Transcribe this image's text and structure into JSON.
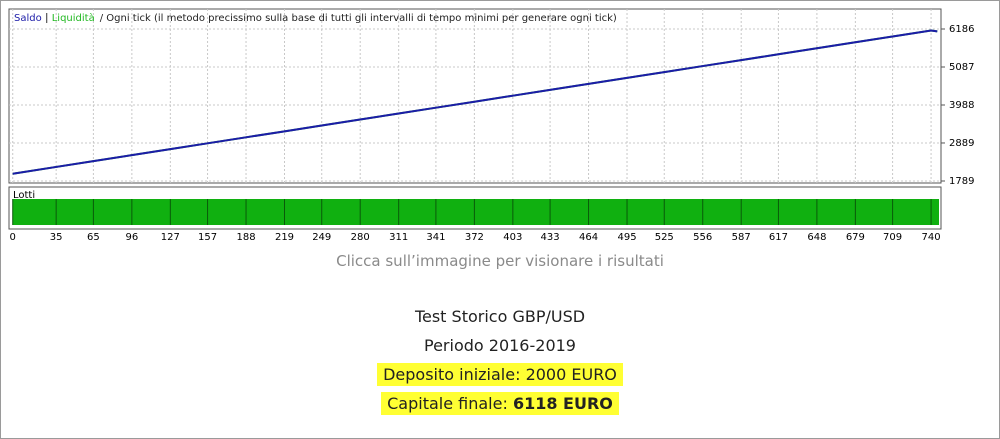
{
  "chart_data": {
    "type": "line",
    "subtitle": "/ Ogni tick (il metodo precissimo sulla base di tutti gli intervalli di tempo minimi per generare ogni tick)",
    "x": [
      0,
      35,
      65,
      96,
      127,
      157,
      188,
      219,
      249,
      280,
      311,
      341,
      372,
      403,
      433,
      464,
      495,
      525,
      556,
      587,
      617,
      648,
      679,
      709,
      740,
      745
    ],
    "series": [
      {
        "name": "Saldo",
        "color": "#1c1ca8",
        "values": [
          2000,
          2196,
          2364,
          2538,
          2711,
          2879,
          3053,
          3226,
          3394,
          3568,
          3742,
          3910,
          4083,
          4257,
          4425,
          4598,
          4772,
          4940,
          5114,
          5287,
          5455,
          5629,
          5802,
          5970,
          6144,
          6118
        ]
      },
      {
        "name": "Liquidità",
        "color": "#22b822",
        "values": [
          2000,
          2196,
          2364,
          2538,
          2711,
          2879,
          3053,
          3226,
          3394,
          3568,
          3742,
          3910,
          4083,
          4257,
          4425,
          4598,
          4772,
          4940,
          5114,
          5287,
          5455,
          5629,
          5802,
          5970,
          6144,
          6118
        ]
      }
    ],
    "xlim": [
      -3,
      748
    ],
    "xticks": [
      0,
      35,
      65,
      96,
      127,
      157,
      188,
      219,
      249,
      280,
      311,
      341,
      372,
      403,
      433,
      464,
      495,
      525,
      556,
      587,
      617,
      648,
      679,
      709,
      740
    ],
    "ylim": [
      1789,
      6707
    ],
    "yticks": [
      1789,
      2889,
      3988,
      5087,
      6186
    ],
    "grid": true,
    "lots_label": "Lotti"
  },
  "caption": "Clicca sull’immagine per visionare i risultati",
  "info": {
    "line1": "Test Storico GBP/USD",
    "line2": "Periodo 2016-2019",
    "line3": "Deposito iniziale: 2000 EURO",
    "final_label": "Capitale finale:",
    "final_value": "6118 EURO"
  }
}
